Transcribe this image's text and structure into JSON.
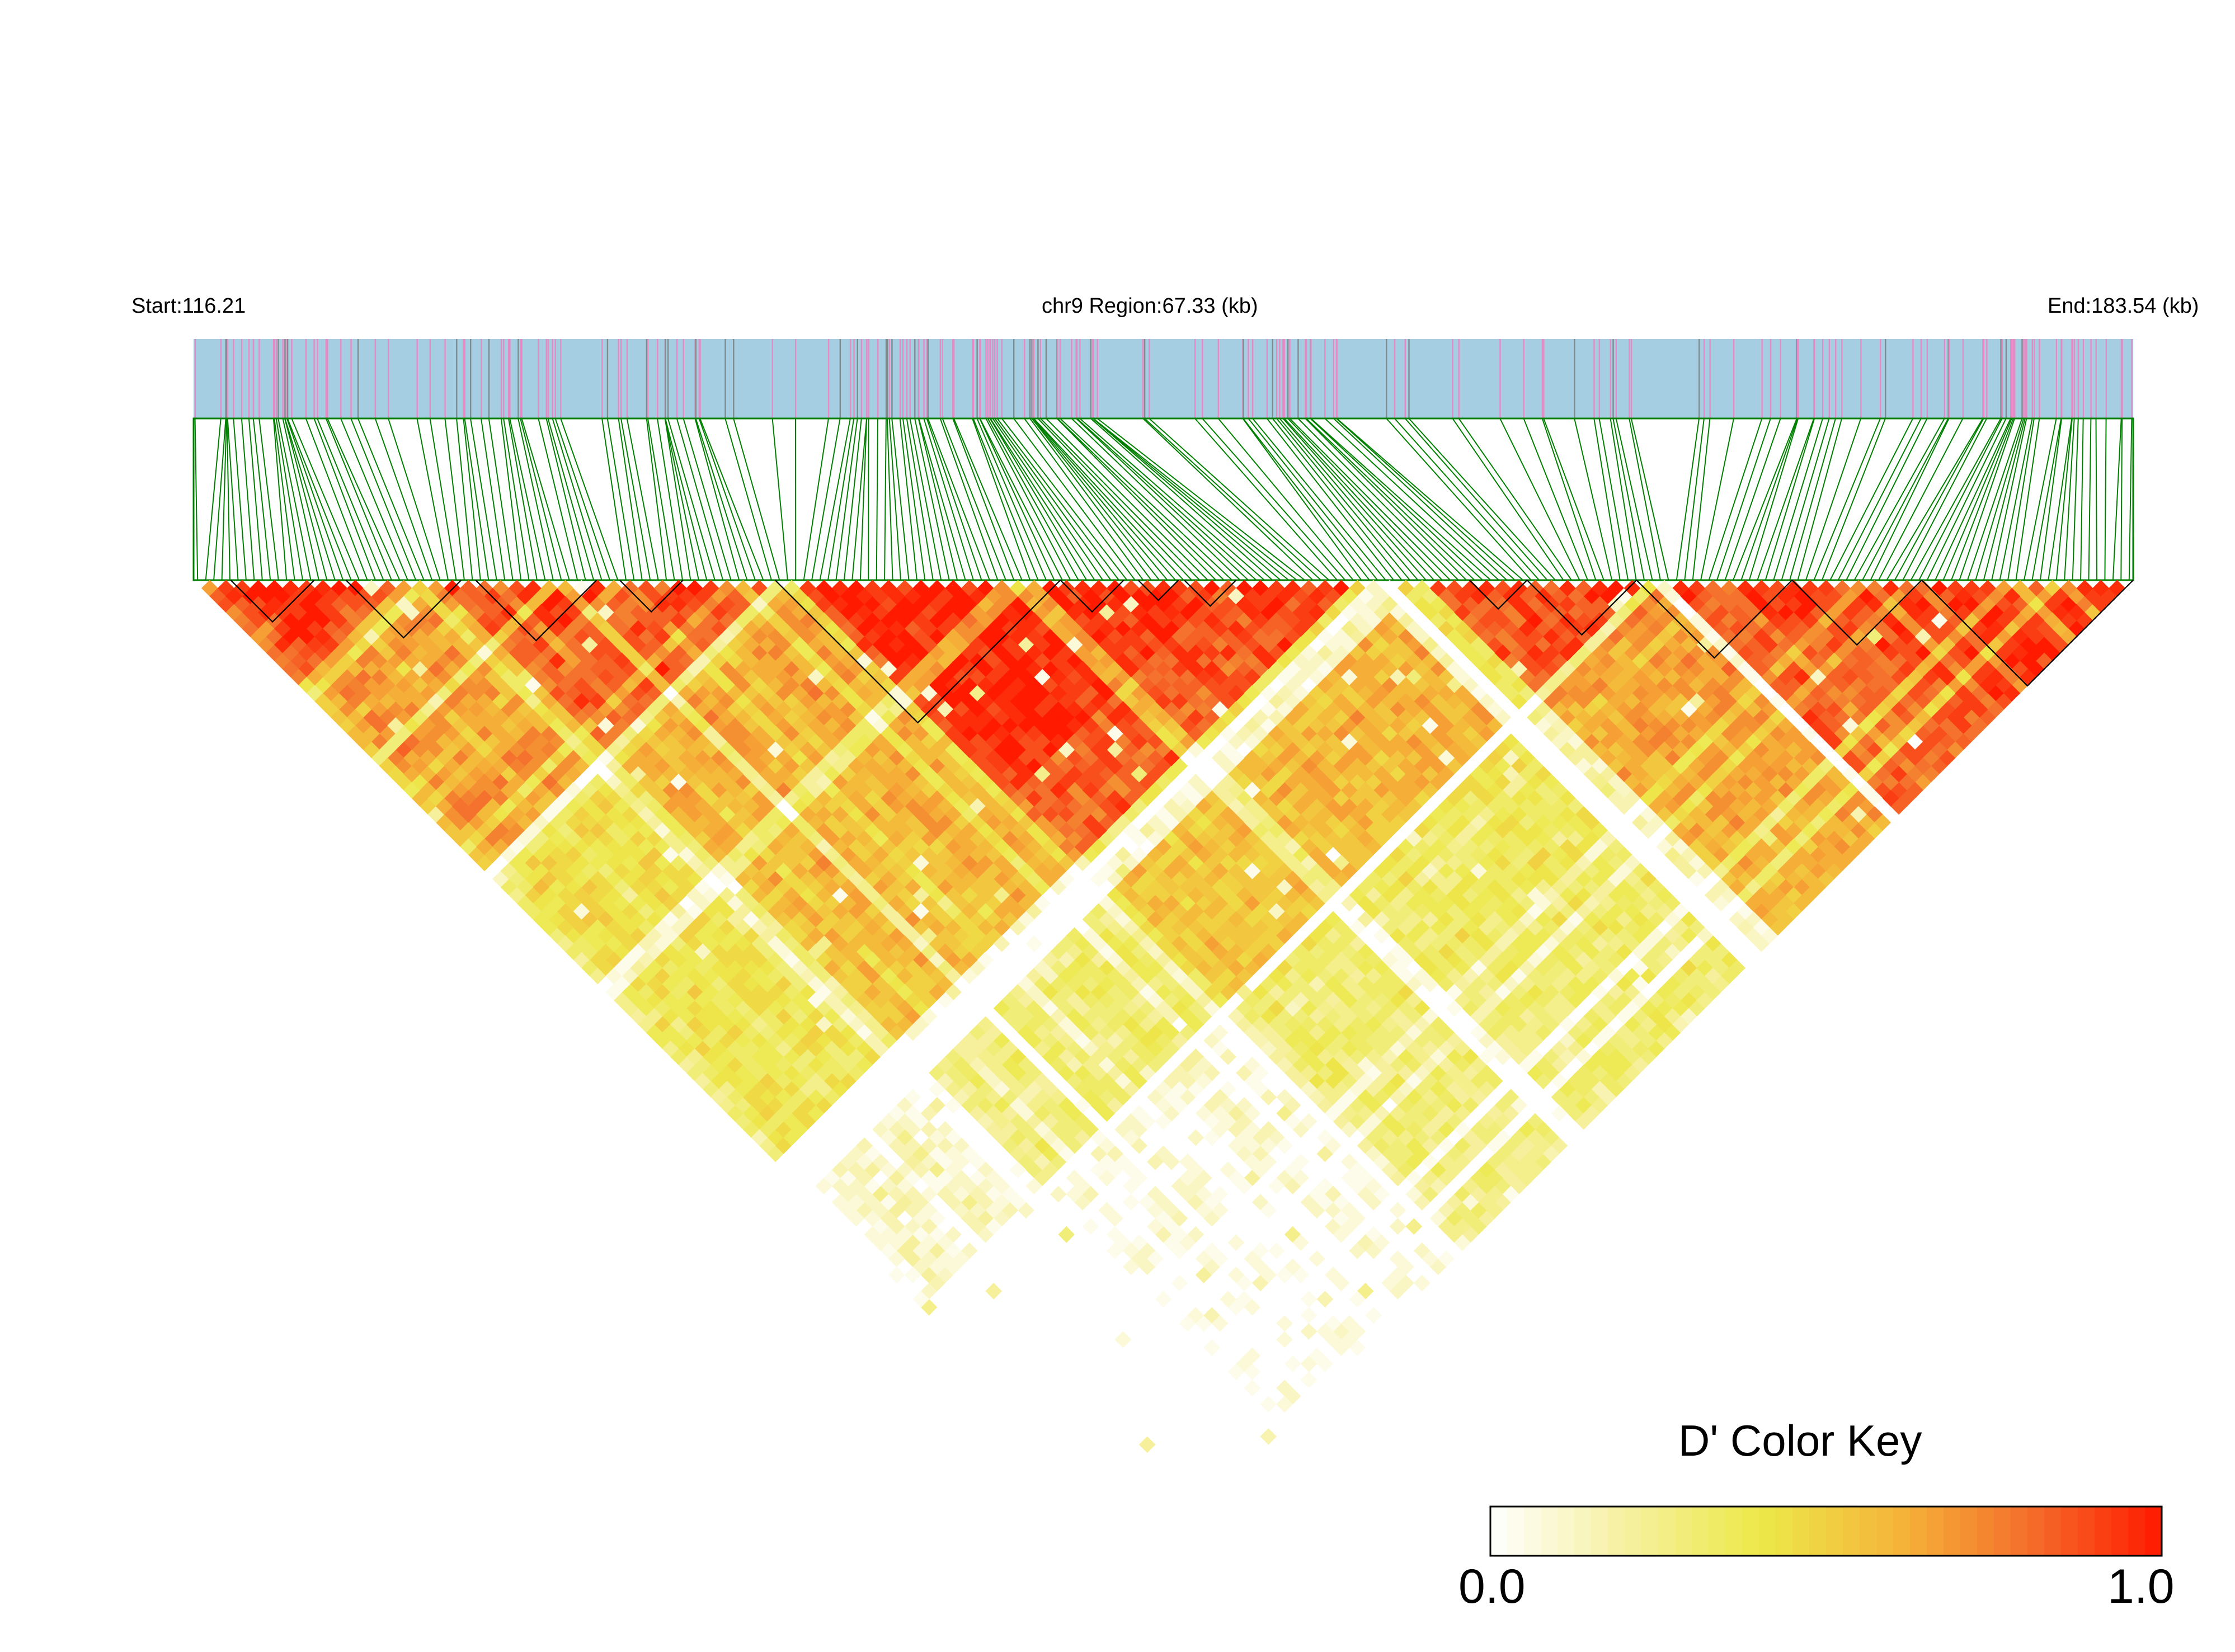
{
  "header": {
    "start_label": "Start:116.21",
    "region_label": "chr9 Region:67.33 (kb)",
    "end_label": "End:183.54 (kb)"
  },
  "colors": {
    "snp_bar_bg": "#a6cee3",
    "snp_tick_pink": "#e78ac3",
    "snp_tick_gray": "#7f8c8d",
    "connector_green": "#008000",
    "ld_high": "#ff1a00",
    "ld_mid": "#f9b233",
    "ld_low": "#fff6c8",
    "block_outline": "#000000"
  },
  "chart_data": {
    "type": "heatmap",
    "subtype": "LD triangle plot (pairwise D')",
    "chromosome": "chr9",
    "region_start_kb": 116.21,
    "region_end_kb": 183.54,
    "region_length_kb": 67.33,
    "color_scale": {
      "title": "D' Color Key",
      "min": 0.0,
      "max": 1.0,
      "min_label": "0.0",
      "max_label": "1.0",
      "stops": [
        "#ffffff",
        "#f6f0a0",
        "#ece94a",
        "#f5b73a",
        "#f46f2c",
        "#ff1a00"
      ]
    },
    "snp_density_clusters_kb": [
      {
        "center": 118.5,
        "weight": 3
      },
      {
        "center": 126.5,
        "weight": 2.2
      },
      {
        "center": 133.0,
        "weight": 2.2
      },
      {
        "center": 140.5,
        "weight": 3.2
      },
      {
        "center": 145.0,
        "weight": 2.6
      },
      {
        "center": 155.0,
        "weight": 1.2
      },
      {
        "center": 164.5,
        "weight": 1.2
      },
      {
        "center": 173.0,
        "weight": 1.4
      },
      {
        "center": 180.5,
        "weight": 3.6
      }
    ],
    "ld_blocks_kb": [
      [
        117.5,
        120.4
      ],
      [
        121.5,
        125.5
      ],
      [
        126.0,
        130.2
      ],
      [
        131.0,
        133.2
      ],
      [
        136.4,
        146.3
      ],
      [
        146.3,
        148.5
      ],
      [
        149.0,
        150.4
      ],
      [
        150.6,
        152.4
      ],
      [
        160.5,
        162.5
      ],
      [
        162.5,
        166.3
      ],
      [
        166.3,
        171.7
      ],
      [
        171.7,
        176.2
      ],
      [
        176.2,
        184.3
      ]
    ],
    "ld_pattern": {
      "base_dprime": 0.88,
      "low_ld_bands_kb": [
        {
          "position": 122.0,
          "strength": 0.35
        },
        {
          "position": 136.0,
          "strength": 0.45
        },
        {
          "position": 153.3,
          "strength": 0.55
        },
        {
          "position": 166.5,
          "strength": 0.4
        }
      ]
    }
  }
}
